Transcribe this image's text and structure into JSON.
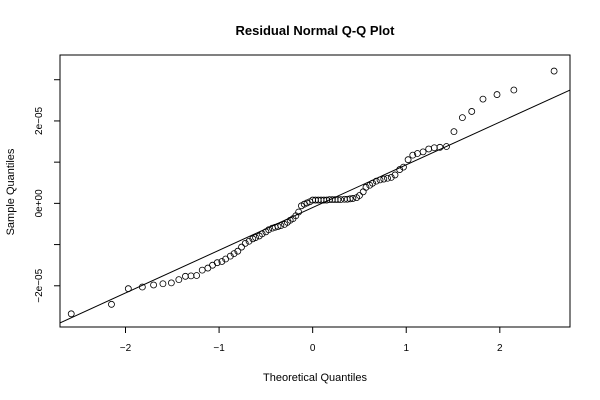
{
  "chart_data": {
    "type": "scatter",
    "title": "Residual Normal Q-Q Plot",
    "xlabel": "Theoretical Quantiles",
    "ylabel": "Sample Quantiles",
    "xlim": [
      -2.7,
      2.75
    ],
    "ylim": [
      -3e-05,
      3.6e-05
    ],
    "x_ticks": [
      -2,
      -1,
      0,
      1,
      2
    ],
    "x_tick_labels": [
      "−2",
      "−1",
      "0",
      "1",
      "2"
    ],
    "y_ticks": [
      -2e-05,
      -1e-05,
      0,
      1e-05,
      2e-05,
      3e-05
    ],
    "y_tick_labels": [
      "−2e−05",
      "",
      "0e+00",
      "",
      "2e−05",
      ""
    ],
    "grid": false,
    "reference_line": {
      "x": [
        -2.7,
        2.75
      ],
      "y": [
        -2.9e-05,
        2.75e-05
      ]
    },
    "points": [
      [
        -2.58,
        -2.68e-05
      ],
      [
        -2.15,
        -2.45e-05
      ],
      [
        -1.97,
        -2.07e-05
      ],
      [
        -1.82,
        -2.03e-05
      ],
      [
        -1.7,
        -1.98e-05
      ],
      [
        -1.6,
        -1.95e-05
      ],
      [
        -1.51,
        -1.93e-05
      ],
      [
        -1.43,
        -1.85e-05
      ],
      [
        -1.36,
        -1.77e-05
      ],
      [
        -1.3,
        -1.76e-05
      ],
      [
        -1.24,
        -1.75e-05
      ],
      [
        -1.18,
        -1.62e-05
      ],
      [
        -1.12,
        -1.57e-05
      ],
      [
        -1.07,
        -1.5e-05
      ],
      [
        -1.02,
        -1.44e-05
      ],
      [
        -0.97,
        -1.41e-05
      ],
      [
        -0.93,
        -1.35e-05
      ],
      [
        -0.88,
        -1.28e-05
      ],
      [
        -0.84,
        -1.22e-05
      ],
      [
        -0.8,
        -1.16e-05
      ],
      [
        -0.76,
        -1.06e-05
      ],
      [
        -0.72,
        -9.7e-06
      ],
      [
        -0.68,
        -9.2e-06
      ],
      [
        -0.64,
        -8.6e-06
      ],
      [
        -0.61,
        -8.3e-06
      ],
      [
        -0.57,
        -7.9e-06
      ],
      [
        -0.54,
        -7.4e-06
      ],
      [
        -0.5,
        -6.9e-06
      ],
      [
        -0.47,
        -6.4e-06
      ],
      [
        -0.43,
        -6e-06
      ],
      [
        -0.4,
        -5.8e-06
      ],
      [
        -0.37,
        -5.6e-06
      ],
      [
        -0.34,
        -5.4e-06
      ],
      [
        -0.3,
        -5.1e-06
      ],
      [
        -0.27,
        -4.6e-06
      ],
      [
        -0.24,
        -4.1e-06
      ],
      [
        -0.21,
        -3.7e-06
      ],
      [
        -0.18,
        -3e-06
      ],
      [
        -0.15,
        -2.1e-06
      ],
      [
        -0.12,
        -6e-07
      ],
      [
        -0.09,
        -2e-07
      ],
      [
        -0.06,
        1e-07
      ],
      [
        -0.03,
        4e-07
      ],
      [
        0.0,
        8e-07
      ],
      [
        0.03,
        8e-07
      ],
      [
        0.06,
        8e-07
      ],
      [
        0.09,
        8e-07
      ],
      [
        0.12,
        8e-07
      ],
      [
        0.15,
        8e-07
      ],
      [
        0.18,
        9e-07
      ],
      [
        0.21,
        9e-07
      ],
      [
        0.24,
        9e-07
      ],
      [
        0.27,
        9e-07
      ],
      [
        0.3,
        9e-07
      ],
      [
        0.34,
        1e-06
      ],
      [
        0.37,
        1e-06
      ],
      [
        0.4,
        1.1e-06
      ],
      [
        0.43,
        1.2e-06
      ],
      [
        0.47,
        1.4e-06
      ],
      [
        0.5,
        1.9e-06
      ],
      [
        0.54,
        2.8e-06
      ],
      [
        0.57,
        3.9e-06
      ],
      [
        0.61,
        4.4e-06
      ],
      [
        0.64,
        4.9e-06
      ],
      [
        0.68,
        5.4e-06
      ],
      [
        0.72,
        5.7e-06
      ],
      [
        0.76,
        5.9e-06
      ],
      [
        0.8,
        6.1e-06
      ],
      [
        0.84,
        6.3e-06
      ],
      [
        0.88,
        6.9e-06
      ],
      [
        0.93,
        8.2e-06
      ],
      [
        0.97,
        8.8e-06
      ],
      [
        1.02,
        1.06e-05
      ],
      [
        1.07,
        1.17e-05
      ],
      [
        1.12,
        1.21e-05
      ],
      [
        1.18,
        1.25e-05
      ],
      [
        1.24,
        1.32e-05
      ],
      [
        1.3,
        1.35e-05
      ],
      [
        1.36,
        1.36e-05
      ],
      [
        1.43,
        1.38e-05
      ],
      [
        1.51,
        1.74e-05
      ],
      [
        1.6,
        2.08e-05
      ],
      [
        1.7,
        2.23e-05
      ],
      [
        1.82,
        2.53e-05
      ],
      [
        1.97,
        2.64e-05
      ],
      [
        2.15,
        2.75e-05
      ],
      [
        2.58,
        3.21e-05
      ]
    ]
  }
}
